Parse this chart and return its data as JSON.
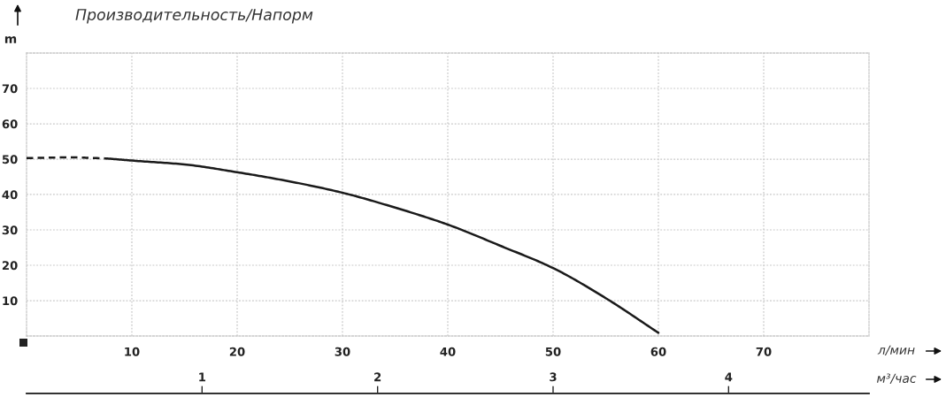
{
  "chart_data": {
    "type": "line",
    "title": "Производительность/Напорм",
    "ylabel": "m",
    "xlabel": "л/мин",
    "x2label": "м³/час",
    "xlim": [
      0,
      80
    ],
    "xticks": [
      10,
      20,
      30,
      40,
      50,
      60,
      70
    ],
    "ylim": [
      0,
      80
    ],
    "yticks": [
      10,
      20,
      30,
      40,
      50,
      60,
      70
    ],
    "x2lim": [
      0,
      4.8
    ],
    "x2ticks": [
      1,
      2,
      3,
      4
    ],
    "grid": true,
    "series": [
      {
        "color": "#1a1a1a",
        "line_style": "dashed",
        "x": [
          0,
          4,
          7.6
        ],
        "values": [
          50.3,
          50.5,
          50.2
        ]
      },
      {
        "color": "#1a1a1a",
        "line_style": "solid",
        "x": [
          7.6,
          10,
          15,
          20,
          25,
          30,
          35,
          40,
          45,
          50,
          55,
          60
        ],
        "values": [
          50.2,
          49.6,
          48.5,
          46.3,
          43.7,
          40.5,
          36.3,
          31.5,
          25.5,
          19.2,
          10.7,
          0.9
        ]
      }
    ]
  }
}
